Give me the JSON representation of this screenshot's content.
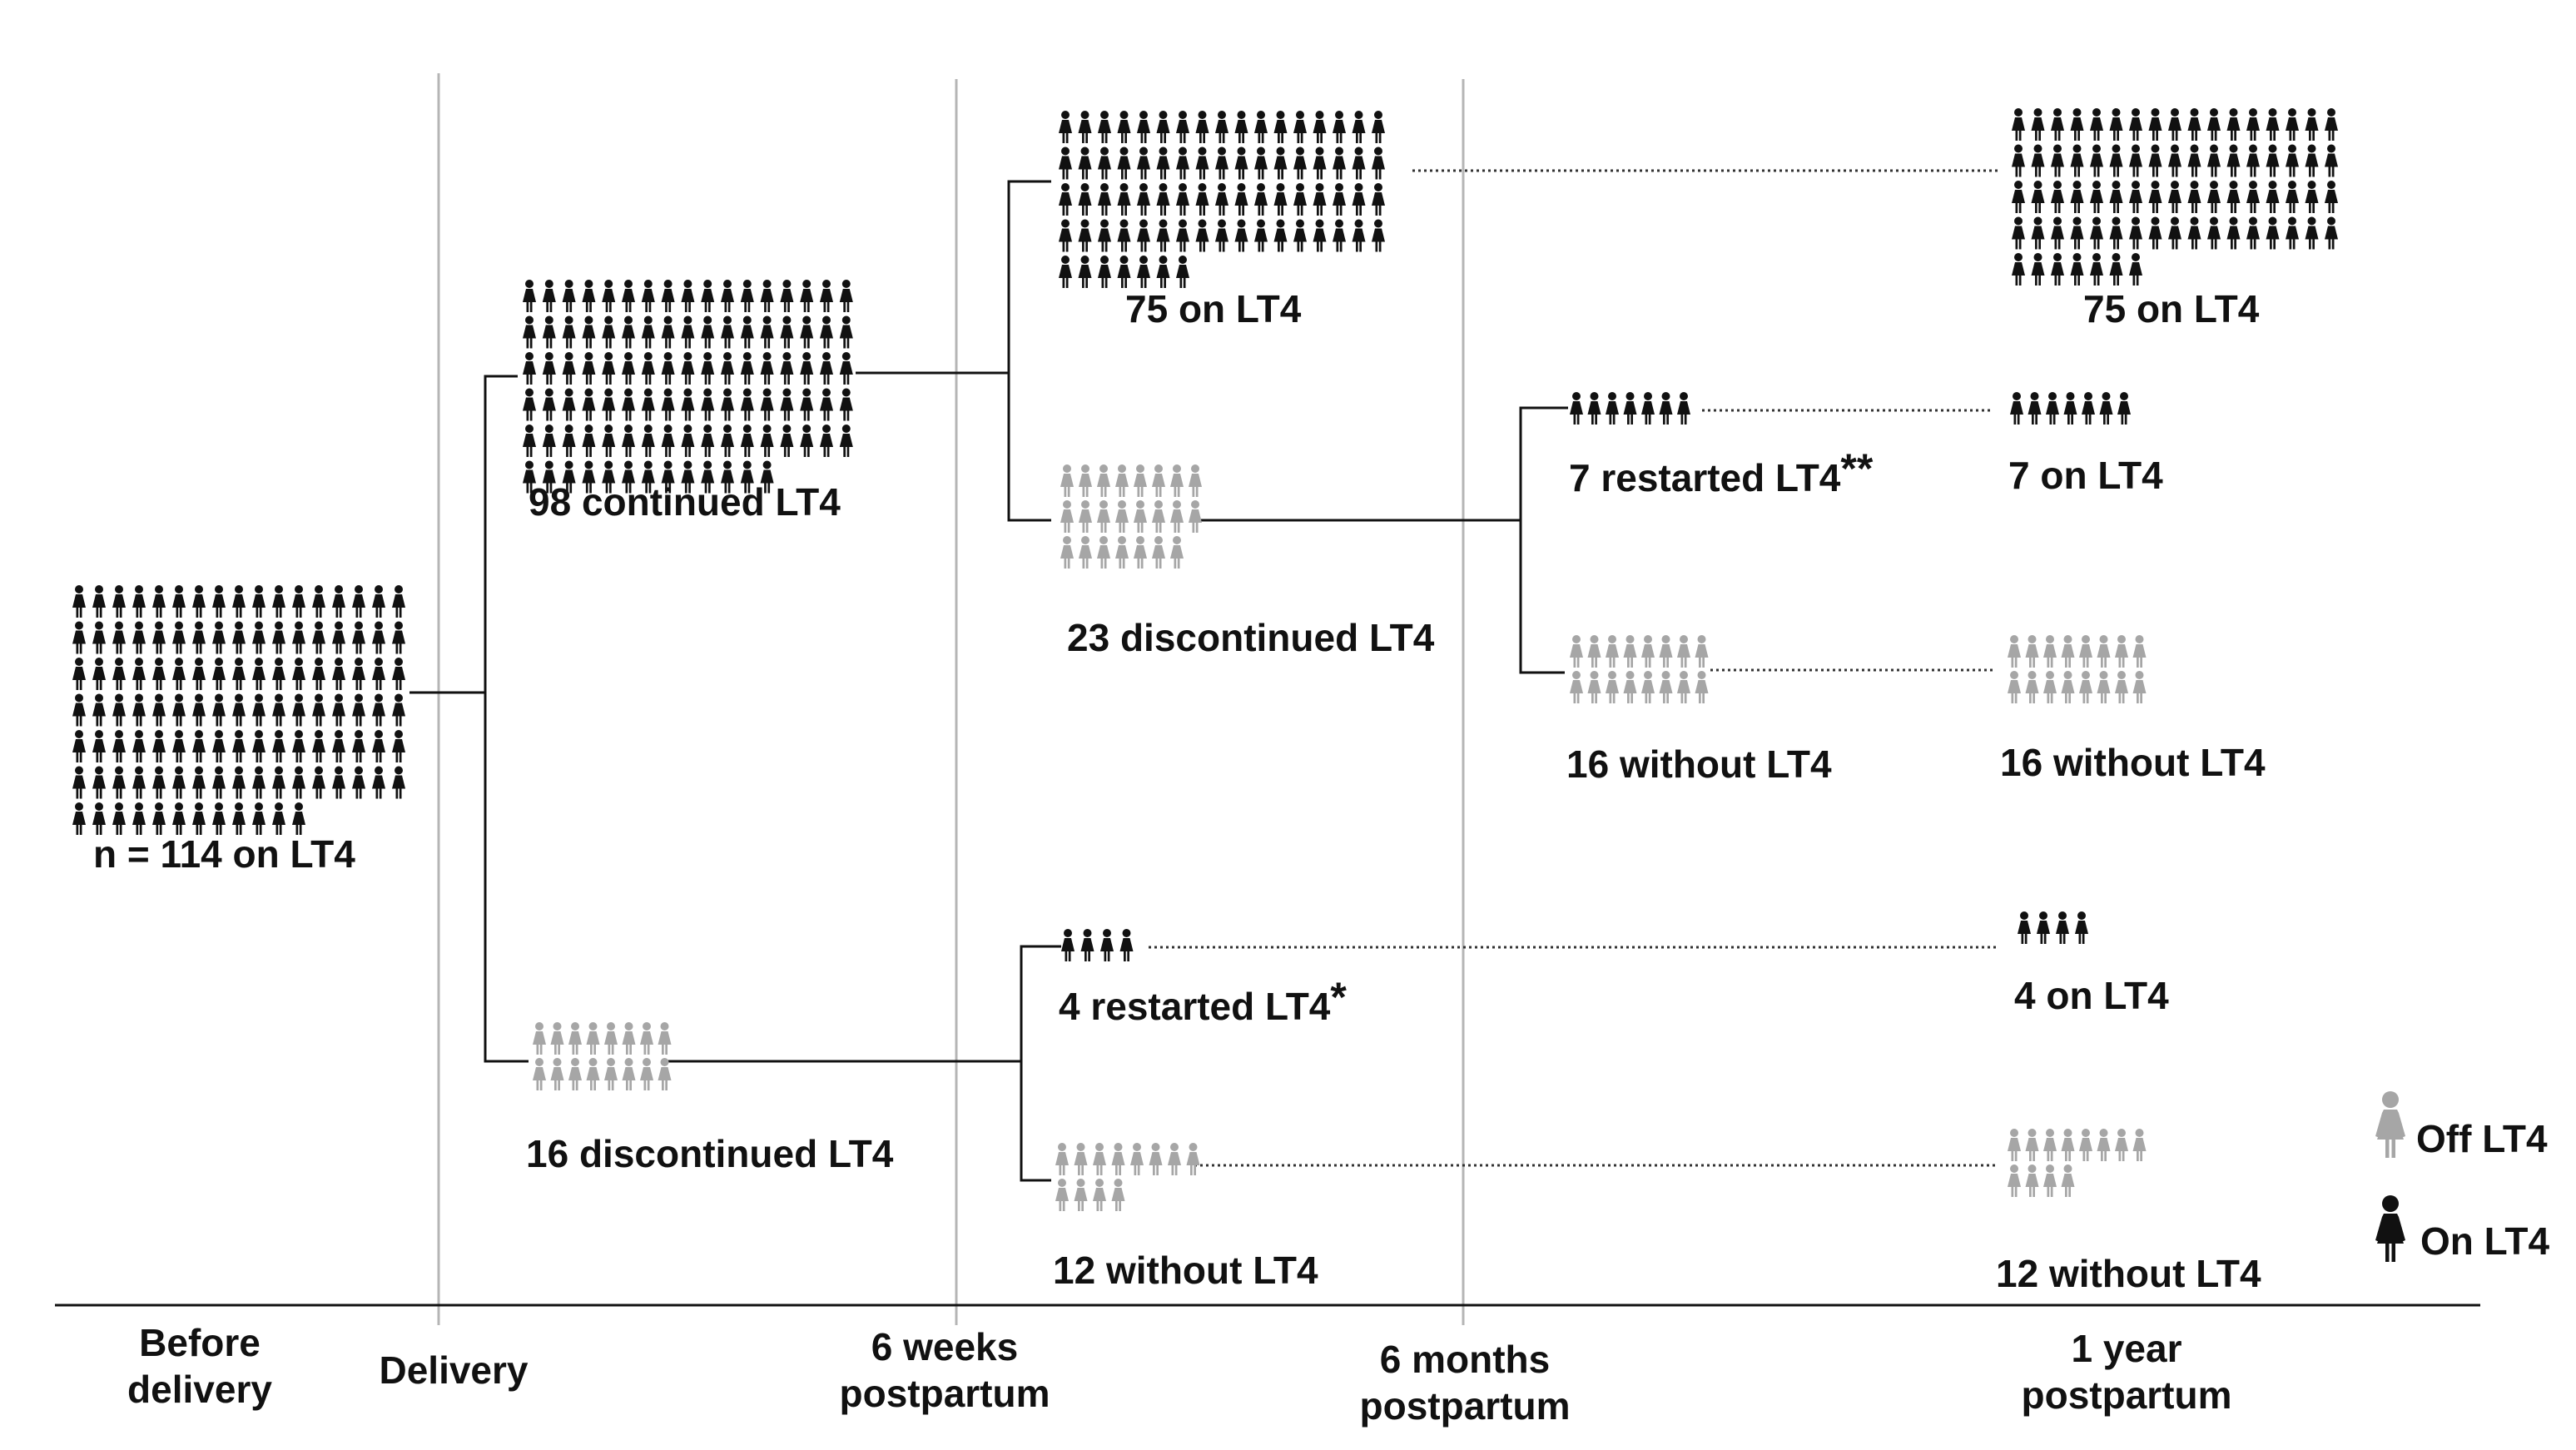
{
  "colors": {
    "on": "#111111",
    "off": "#a6a6a6",
    "grid": "#b5b5b5",
    "line": "#111111"
  },
  "icons": {
    "on": "woman-figure-black-icon",
    "off": "woman-figure-grey-icon"
  },
  "groups": {
    "baseline": {
      "count": 114,
      "status": "on",
      "label": "n = 114 on LT4"
    },
    "continued": {
      "count": 98,
      "status": "on",
      "label": "98 continued LT4"
    },
    "discontinued_d": {
      "count": 16,
      "status": "off",
      "label": "16 discontinued LT4"
    },
    "on_6w": {
      "count": 75,
      "status": "on",
      "label": "75 on LT4"
    },
    "discontinued_6w": {
      "count": 23,
      "status": "off",
      "label": "23 discontinued LT4"
    },
    "restarted_6w": {
      "count": 4,
      "status": "on",
      "label": "4 restarted LT4",
      "mark": "*"
    },
    "without_6w": {
      "count": 12,
      "status": "off",
      "label": "12 without LT4"
    },
    "restarted_6m": {
      "count": 7,
      "status": "on",
      "label": "7 restarted LT4",
      "mark": "**"
    },
    "without_6m": {
      "count": 16,
      "status": "off",
      "label": "16 without LT4"
    },
    "on_1y_75": {
      "count": 75,
      "status": "on",
      "label": "75 on LT4"
    },
    "on_1y_7": {
      "count": 7,
      "status": "on",
      "label": "7 on LT4"
    },
    "without_1y_16": {
      "count": 16,
      "status": "off",
      "label": "16 without LT4"
    },
    "on_1y_4": {
      "count": 4,
      "status": "on",
      "label": "4 on LT4"
    },
    "without_1y_12": {
      "count": 12,
      "status": "off",
      "label": "12 without LT4"
    }
  },
  "timeline": {
    "before_delivery": "Before\ndelivery",
    "delivery": "Delivery",
    "six_weeks": "6 weeks\npostpartum",
    "six_months": "6 months\npostpartum",
    "one_year": "1 year\npostpartum"
  },
  "legend": {
    "off_label": "Off LT4",
    "on_label": "On LT4"
  }
}
